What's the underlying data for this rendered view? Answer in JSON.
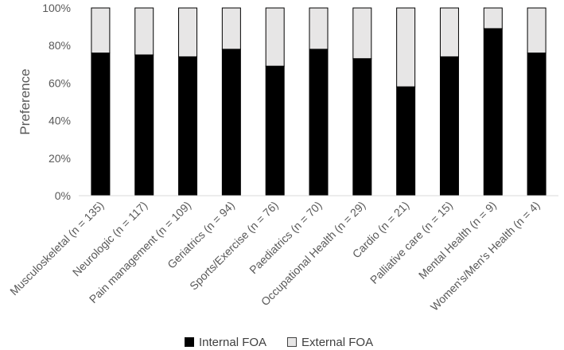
{
  "chart_data": {
    "type": "bar",
    "stacked": true,
    "percent_stacked": true,
    "title": "",
    "xlabel": "",
    "ylabel": "Preference",
    "ylim": [
      0,
      100
    ],
    "yticks": [
      "0%",
      "20%",
      "40%",
      "60%",
      "80%",
      "100%"
    ],
    "grid": false,
    "legend_position": "bottom",
    "categories": [
      "Musculoskeletal (n = 135)",
      "Neurologic (n = 117)",
      "Pain management (n = 109)",
      "Geriatrics (n = 94)",
      "Sports/Exercise (n = 76)",
      "Paediatrics (n = 70)",
      "Occupational Health (n = 29)",
      "Cardio (n = 21)",
      "Palliative care (n = 15)",
      "Mental Health (n = 9)",
      "Women's/Men's Health (n = 4)"
    ],
    "series": [
      {
        "name": "Internal FOA",
        "color": "#000000",
        "values": [
          76,
          75,
          74,
          78,
          69,
          78,
          73,
          58,
          74,
          89,
          76
        ]
      },
      {
        "name": "External FOA",
        "color": "#e7e6e6",
        "values": [
          24,
          25,
          26,
          22,
          31,
          22,
          27,
          42,
          26,
          11,
          24
        ]
      }
    ]
  }
}
